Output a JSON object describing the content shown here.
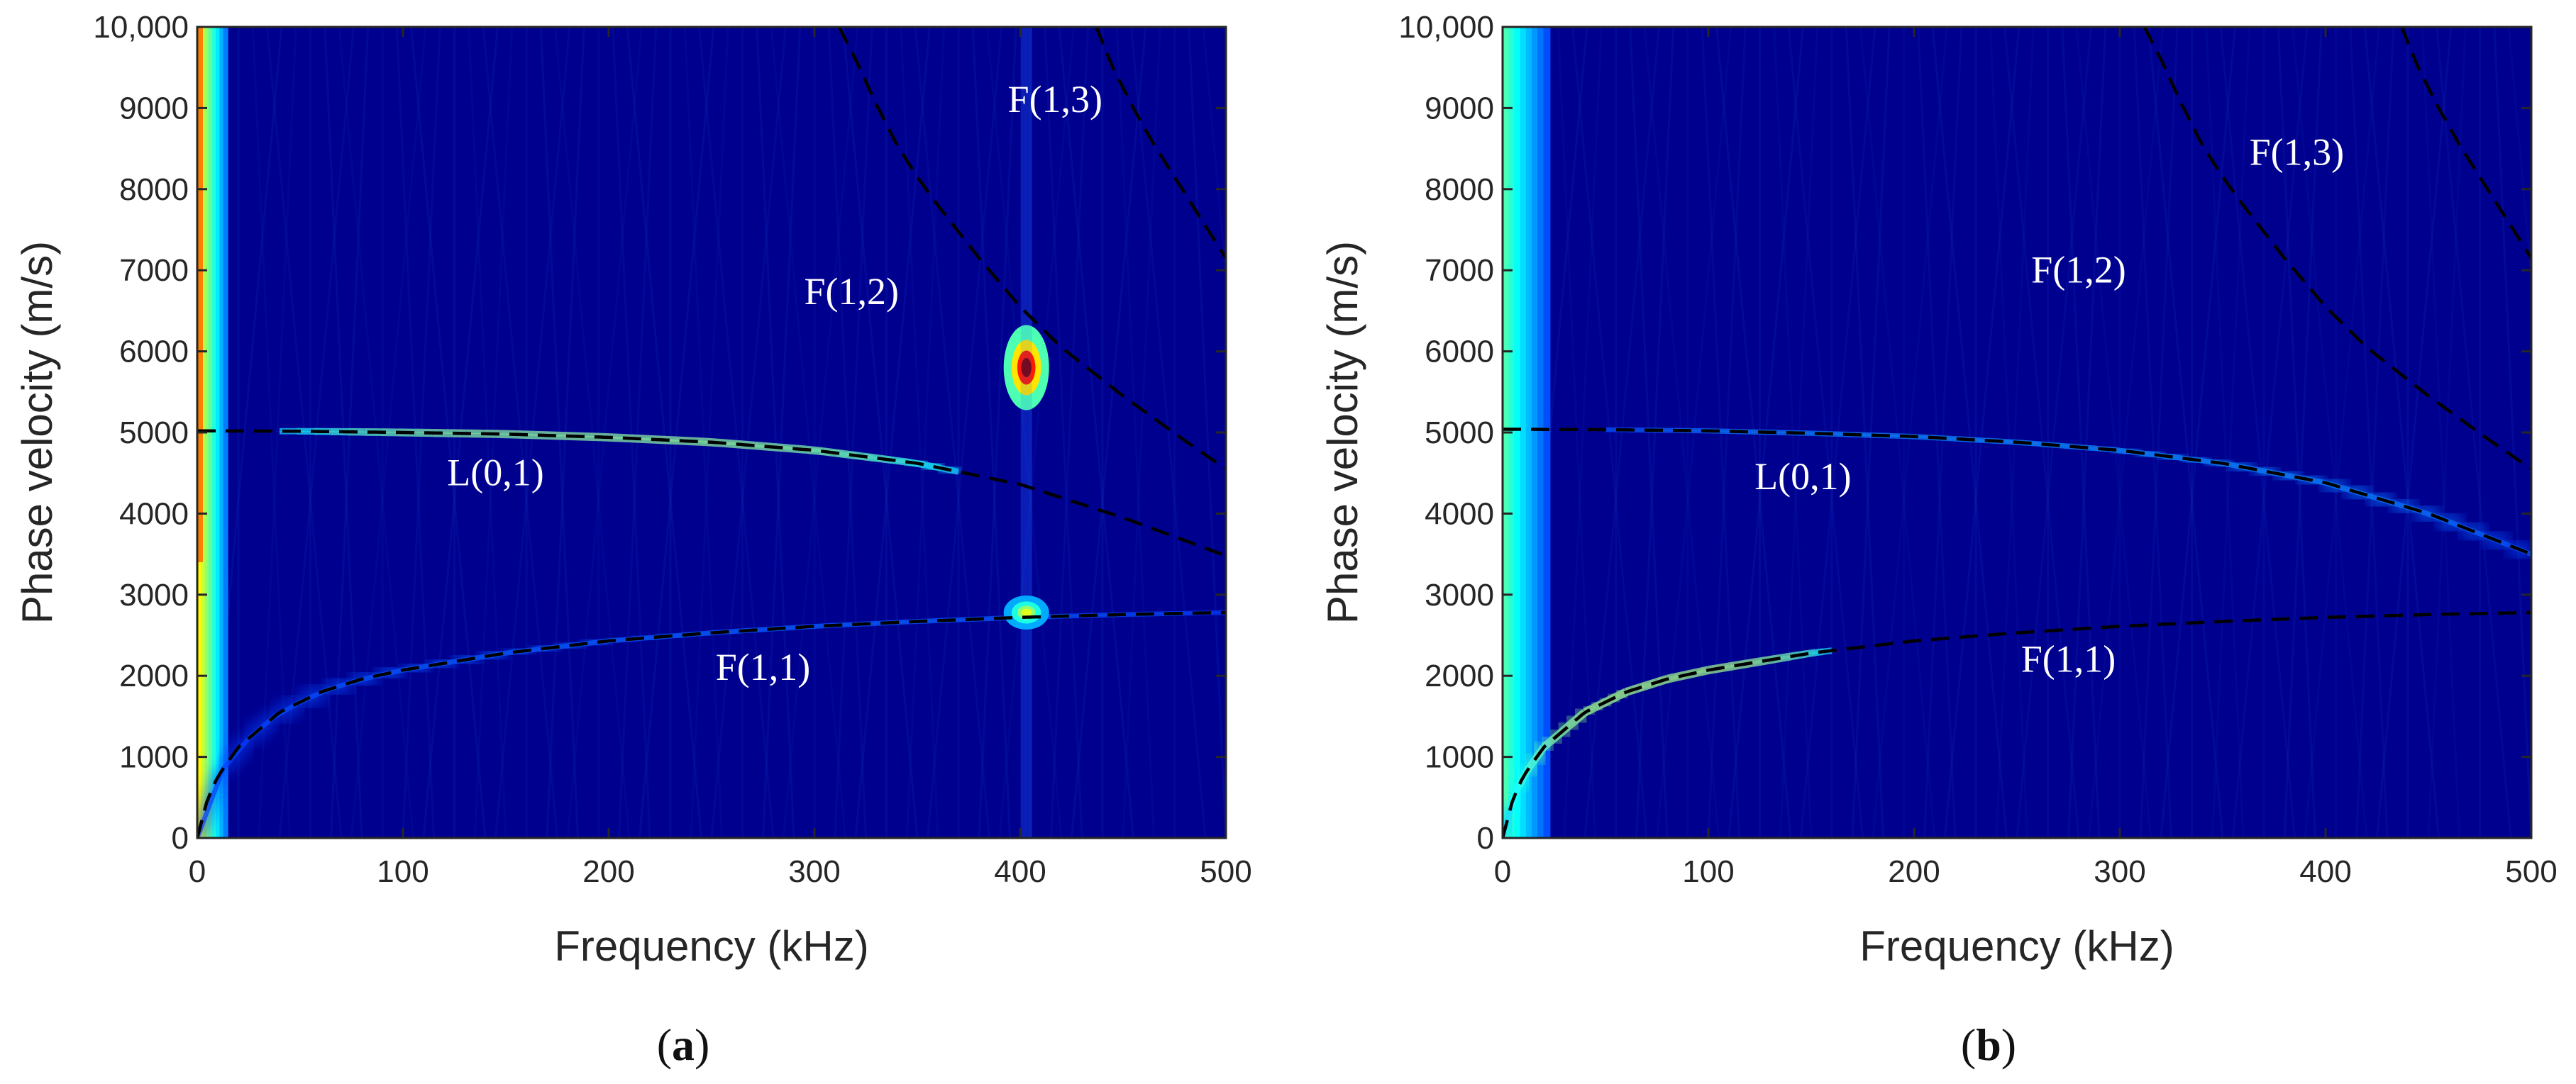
{
  "chart_data": [
    {
      "type": "heatmap",
      "panel_label": "a",
      "xlabel": "Frequency (kHz)",
      "ylabel": "Phase velocity (m/s)",
      "xlim": [
        0,
        500
      ],
      "ylim": [
        0,
        10000
      ],
      "xticks": [
        "0",
        "100",
        "200",
        "300",
        "400",
        "500"
      ],
      "yticks": [
        "0",
        "1000",
        "2000",
        "3000",
        "4000",
        "5000",
        "6000",
        "7000",
        "8000",
        "9000",
        "10,000"
      ],
      "colormap": "jet",
      "background_color": "#00008f",
      "modes": [
        {
          "name": "L(0,1)",
          "label_at": [
            145,
            4350
          ],
          "x": [
            0,
            50,
            100,
            150,
            200,
            250,
            300,
            350,
            400,
            450,
            500
          ],
          "y": [
            5020,
            5015,
            5000,
            4980,
            4940,
            4880,
            4780,
            4620,
            4360,
            3950,
            3480
          ]
        },
        {
          "name": "F(1,1)",
          "label_at": [
            275,
            1950
          ],
          "x": [
            0,
            5,
            10,
            20,
            40,
            60,
            80,
            100,
            150,
            200,
            250,
            300,
            350,
            400,
            450,
            500
          ],
          "y": [
            0,
            480,
            760,
            1120,
            1550,
            1800,
            1960,
            2070,
            2280,
            2430,
            2530,
            2610,
            2670,
            2720,
            2755,
            2780
          ]
        },
        {
          "name": "F(1,2)",
          "label_at": [
            318,
            6580
          ],
          "x": [
            312,
            320,
            330,
            340,
            350,
            360,
            380,
            400,
            420,
            450,
            480,
            500
          ],
          "y": [
            10000,
            9600,
            9050,
            8550,
            8150,
            7800,
            7150,
            6550,
            6050,
            5450,
            4900,
            4550
          ]
        },
        {
          "name": "F(1,3)",
          "label_at": [
            417,
            8950
          ],
          "x": [
            437,
            445,
            455,
            465,
            475,
            485,
            495,
            500
          ],
          "y": [
            10000,
            9500,
            9000,
            8550,
            8150,
            7750,
            7350,
            7150
          ]
        }
      ],
      "energy": {
        "bands": [
          {
            "mode": "L(0,1)",
            "x_range": [
              40,
              370
            ],
            "intensity": 0.7
          },
          {
            "mode": "F(1,1)",
            "x_range": [
              0,
              500
            ],
            "intensity": 0.12
          }
        ],
        "hotspots": [
          {
            "x": 403,
            "y": 5800,
            "intensity": 1.0
          },
          {
            "x": 403,
            "y": 2780,
            "intensity": 0.55
          }
        ],
        "low_freq_band": {
          "x_range": [
            0,
            14
          ],
          "intensity": 0.85
        }
      }
    },
    {
      "type": "heatmap",
      "panel_label": "b",
      "xlabel": "Frequency (kHz)",
      "ylabel": "Phase velocity (m/s)",
      "xlim": [
        0,
        500
      ],
      "ylim": [
        0,
        10000
      ],
      "xticks": [
        "0",
        "100",
        "200",
        "300",
        "400",
        "500"
      ],
      "yticks": [
        "0",
        "1000",
        "2000",
        "3000",
        "4000",
        "5000",
        "6000",
        "7000",
        "8000",
        "9000",
        "10,000"
      ],
      "colormap": "jet",
      "background_color": "#00008f",
      "modes": [
        {
          "name": "L(0,1)",
          "label_at": [
            146,
            4300
          ],
          "x": [
            0,
            50,
            100,
            150,
            200,
            250,
            300,
            350,
            400,
            450,
            500
          ],
          "y": [
            5040,
            5035,
            5020,
            4990,
            4950,
            4880,
            4780,
            4620,
            4380,
            4000,
            3500
          ]
        },
        {
          "name": "F(1,1)",
          "label_at": [
            275,
            2050
          ],
          "x": [
            0,
            5,
            10,
            20,
            40,
            60,
            80,
            100,
            150,
            200,
            250,
            300,
            350,
            400,
            450,
            500
          ],
          "y": [
            0,
            480,
            760,
            1120,
            1550,
            1800,
            1960,
            2070,
            2280,
            2430,
            2530,
            2610,
            2670,
            2720,
            2755,
            2780
          ]
        },
        {
          "name": "F(1,2)",
          "label_at": [
            280,
            6850
          ],
          "x": [
            312,
            320,
            330,
            340,
            350,
            360,
            380,
            400,
            420,
            450,
            480,
            500
          ],
          "y": [
            10000,
            9600,
            9050,
            8550,
            8150,
            7800,
            7150,
            6550,
            6050,
            5450,
            4900,
            4550
          ]
        },
        {
          "name": "F(1,3)",
          "label_at": [
            386,
            8300
          ],
          "x": [
            437,
            445,
            455,
            465,
            475,
            485,
            495,
            500
          ],
          "y": [
            10000,
            9500,
            9000,
            8550,
            8150,
            7750,
            7350,
            7150
          ]
        }
      ],
      "energy": {
        "bands": [
          {
            "mode": "F(1,1)",
            "x_range": [
              0,
              160
            ],
            "intensity": 0.75
          },
          {
            "mode": "L(0,1)",
            "x_range": [
              50,
              500
            ],
            "intensity": 0.2
          }
        ],
        "hotspots": [],
        "low_freq_band": {
          "x_range": [
            0,
            22
          ],
          "intensity": 0.55
        }
      }
    }
  ]
}
